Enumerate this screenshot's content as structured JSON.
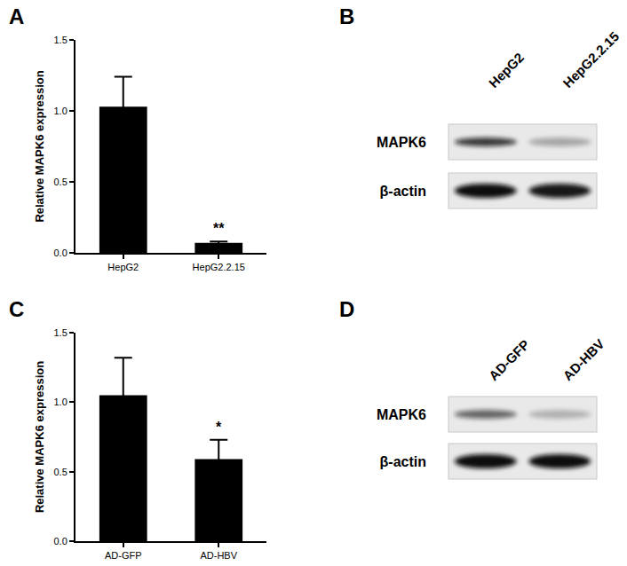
{
  "chart_data": [
    {
      "type": "bar",
      "title": "A",
      "ylabel": "Relative MAPK6 expression",
      "categories": [
        "HepG2",
        "HepG2.2.15"
      ],
      "values": [
        1.03,
        0.07
      ],
      "error": [
        0.21,
        0.01
      ],
      "color": "#000000",
      "ylim": [
        0,
        1.5
      ],
      "yticks": [
        {
          "value": 0,
          "label": "0.0"
        },
        0.5,
        {
          "value": 1,
          "label": "1.0"
        },
        {
          "value": 1.5,
          "label": "1.5"
        }
      ],
      "grid": false,
      "annotations": [
        {
          "category": "HepG2.2.15",
          "text": "**"
        }
      ]
    },
    {
      "type": "bar",
      "title": "C",
      "ylabel": "Relative MAPK6 expression",
      "categories": [
        "AD-GFP",
        "AD-HBV"
      ],
      "values": [
        1.05,
        0.59
      ],
      "error": [
        0.27,
        0.14
      ],
      "color": "#000000",
      "ylim": [
        0,
        1.5
      ],
      "yticks": [
        {
          "value": 0,
          "label": "0.0"
        },
        0.5,
        {
          "value": 1,
          "label": "1.0"
        },
        {
          "value": 1.5,
          "label": "1.5"
        }
      ],
      "grid": false,
      "annotations": [
        {
          "category": "AD-HBV",
          "text": "*"
        }
      ]
    }
  ],
  "blots": [
    {
      "panel": "B",
      "lanes": [
        "HepG2",
        "HepG2.2.15"
      ],
      "rows": [
        {
          "label": "MAPK6",
          "intensity": [
            0.8,
            0.3
          ]
        },
        {
          "label": "β-actin",
          "intensity": [
            1,
            0.95
          ]
        }
      ]
    },
    {
      "panel": "D",
      "lanes": [
        "AD-GFP",
        "AD-HBV"
      ],
      "rows": [
        {
          "label": "MAPK6",
          "intensity": [
            0.6,
            0.25
          ]
        },
        {
          "label": "β-actin",
          "intensity": [
            1,
            1
          ]
        }
      ]
    }
  ]
}
